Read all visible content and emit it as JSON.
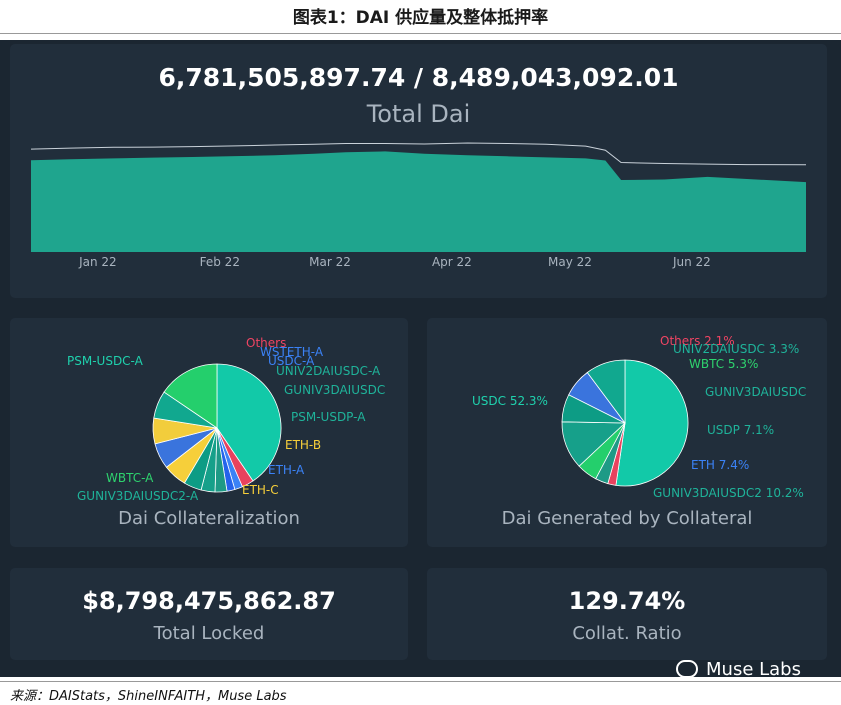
{
  "figure_title": "图表1：DAI 供应量及整体抵押率",
  "source": "来源：DAIStats，ShineINFAITH，Muse Labs",
  "watermark": "Muse Labs",
  "colors": {
    "background": "#1b2631",
    "card": "#212e3b",
    "area": "#1fa58e",
    "ceiling_line": "#c9d1d9",
    "label_text": "#a9b4bf"
  },
  "supply_header": {
    "value": "6,781,505,897.74 / 8,489,043,092.01",
    "label": "Total Dai"
  },
  "total_locked": {
    "value": "$8,798,475,862.87",
    "label": "Total Locked"
  },
  "collat_ratio": {
    "value": "129.74%",
    "label": "Collat. Ratio"
  },
  "chart_data": [
    {
      "type": "area",
      "title": "Total Dai",
      "x_ticks": [
        "Jan 22",
        "Feb 22",
        "Mar 22",
        "Apr 22",
        "May 22",
        "Jun 22"
      ],
      "xlim": [
        "2021-12-15",
        "2022-06-30"
      ],
      "ylim": [
        0,
        10.5
      ],
      "grid": false,
      "series": [
        {
          "values": [
            [
              "2021-12-15",
              8.92
            ],
            [
              "2021-12-25",
              9.02
            ],
            [
              "2022-01-05",
              9.1
            ],
            [
              "2022-01-15",
              9.18
            ],
            [
              "2022-01-25",
              9.24
            ],
            [
              "2022-02-05",
              9.32
            ],
            [
              "2022-02-15",
              9.4
            ],
            [
              "2022-02-25",
              9.55
            ],
            [
              "2022-03-05",
              9.7
            ],
            [
              "2022-03-15",
              9.78
            ],
            [
              "2022-03-25",
              9.55
            ],
            [
              "2022-04-05",
              9.4
            ],
            [
              "2022-04-15",
              9.3
            ],
            [
              "2022-04-25",
              9.2
            ],
            [
              "2022-05-05",
              9.1
            ],
            [
              "2022-05-10",
              8.9
            ],
            [
              "2022-05-14",
              7.0
            ],
            [
              "2022-05-25",
              7.05
            ],
            [
              "2022-06-05",
              7.3
            ],
            [
              "2022-06-15",
              7.1
            ],
            [
              "2022-06-30",
              6.8
            ]
          ]
        },
        {
          "values": [
            [
              "2021-12-15",
              10.0
            ],
            [
              "2021-12-25",
              10.1
            ],
            [
              "2022-01-05",
              10.18
            ],
            [
              "2022-01-15",
              10.2
            ],
            [
              "2022-01-25",
              10.25
            ],
            [
              "2022-02-05",
              10.32
            ],
            [
              "2022-02-15",
              10.4
            ],
            [
              "2022-02-25",
              10.48
            ],
            [
              "2022-03-05",
              10.55
            ],
            [
              "2022-03-15",
              10.55
            ],
            [
              "2022-03-25",
              10.5
            ],
            [
              "2022-04-05",
              10.6
            ],
            [
              "2022-04-15",
              10.55
            ],
            [
              "2022-04-25",
              10.48
            ],
            [
              "2022-05-05",
              10.3
            ],
            [
              "2022-05-10",
              9.9
            ],
            [
              "2022-05-14",
              8.7
            ],
            [
              "2022-05-25",
              8.6
            ],
            [
              "2022-06-05",
              8.55
            ],
            [
              "2022-06-15",
              8.5
            ],
            [
              "2022-06-30",
              8.49
            ]
          ]
        }
      ]
    },
    {
      "type": "pie",
      "title": "Dai Collateralization",
      "categories": [
        "PSM-USDC-A",
        "Others",
        "WSTETH-A",
        "USDC-A",
        "UNIV2DAIUSDC-A",
        "GUNIV3DAIUSDC",
        "PSM-USDP-A",
        "ETH-B",
        "ETH-A",
        "ETH-C",
        "GUNIV3DAIUSDC2-A",
        "WBTC-A"
      ],
      "values": [
        40.5,
        3.0,
        2.0,
        2.0,
        3.0,
        3.5,
        4.5,
        6.0,
        6.5,
        6.5,
        7.0,
        15.5
      ],
      "colors": [
        "#12c9a8",
        "#e8425e",
        "#3b82f6",
        "#2563eb",
        "#1e9a86",
        "#16a08a",
        "#0d9c85",
        "#f6cf3a",
        "#3a74dd",
        "#f2cd3c",
        "#11a88f",
        "#24cf6c"
      ],
      "label_colors": [
        "#1fd1ad",
        "#ef4463",
        "#3b82f6",
        "#3b82f6",
        "#1fb39a",
        "#1fb39a",
        "#1fb39a",
        "#f6cf3a",
        "#3b82f6",
        "#f6cf3a",
        "#1fb39a",
        "#2ed36e"
      ]
    },
    {
      "type": "pie",
      "title": "Dai Generated by Collateral",
      "categories": [
        "USDC 52.3%",
        "Others 2.1%",
        "UNIV2DAIUSDC 3.3%",
        "WBTC 5.3%",
        "GUNIV3DAIUSDC",
        "USDP 7.1%",
        "ETH 7.4%",
        "GUNIV3DAIUSDC2 10.2%"
      ],
      "values": [
        52.3,
        2.1,
        3.3,
        5.3,
        12.3,
        7.1,
        7.4,
        10.2
      ],
      "colors": [
        "#12c9a8",
        "#e8425e",
        "#1e9a86",
        "#24cf6c",
        "#16a08a",
        "#0d9c85",
        "#3a74dd",
        "#11a88f"
      ],
      "label_colors": [
        "#1fd1ad",
        "#ef4463",
        "#1fb39a",
        "#2ed36e",
        "#1fb39a",
        "#1fb39a",
        "#3b82f6",
        "#1fb39a"
      ]
    }
  ]
}
